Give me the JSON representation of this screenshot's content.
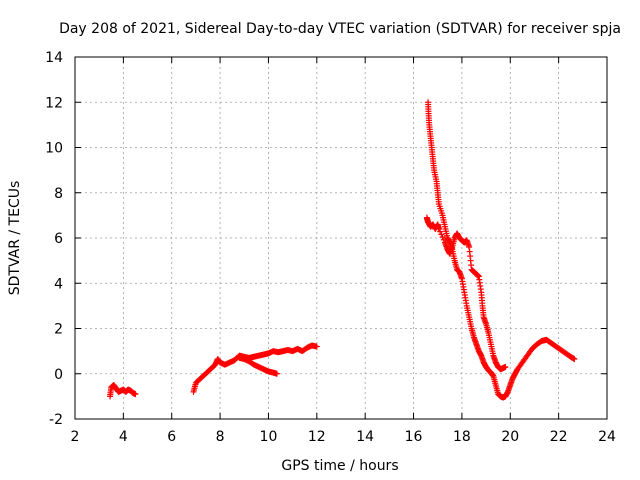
{
  "chart_data": {
    "type": "scatter",
    "title": "Day 208 of 2021, Sidereal Day-to-day VTEC variation (SDTVAR) for receiver spja",
    "xlabel": "GPS time / hours",
    "ylabel": "SDTVAR / TECUs",
    "xlim": [
      2,
      24
    ],
    "ylim": [
      -2,
      14
    ],
    "xticks": [
      "2",
      "4",
      "6",
      "8",
      "10",
      "12",
      "14",
      "16",
      "18",
      "20",
      "22",
      "24"
    ],
    "yticks": [
      "-2",
      "0",
      "2",
      "4",
      "6",
      "8",
      "10",
      "12",
      "14"
    ],
    "grid": true,
    "marker": "+",
    "color": "#ff0000",
    "series": [
      {
        "name": "SDTVAR",
        "segments": [
          [
            [
              3.45,
              -1.0
            ],
            [
              3.5,
              -0.6
            ],
            [
              3.6,
              -0.5
            ],
            [
              3.7,
              -0.65
            ],
            [
              3.8,
              -0.8
            ],
            [
              3.9,
              -0.75
            ],
            [
              4.0,
              -0.7
            ],
            [
              4.1,
              -0.8
            ],
            [
              4.2,
              -0.7
            ],
            [
              4.3,
              -0.75
            ],
            [
              4.4,
              -0.85
            ],
            [
              4.5,
              -0.9
            ]
          ],
          [
            [
              6.9,
              -0.8
            ],
            [
              7.0,
              -0.4
            ],
            [
              7.2,
              -0.2
            ],
            [
              7.4,
              0.0
            ],
            [
              7.6,
              0.2
            ],
            [
              7.8,
              0.4
            ],
            [
              7.9,
              0.65
            ],
            [
              8.0,
              0.5
            ],
            [
              8.2,
              0.4
            ],
            [
              8.4,
              0.5
            ],
            [
              8.6,
              0.6
            ],
            [
              8.8,
              0.8
            ],
            [
              9.0,
              0.75
            ],
            [
              9.2,
              0.7
            ],
            [
              9.4,
              0.75
            ],
            [
              9.6,
              0.8
            ],
            [
              9.8,
              0.85
            ],
            [
              10.0,
              0.9
            ],
            [
              10.2,
              1.0
            ],
            [
              10.4,
              0.95
            ],
            [
              10.6,
              1.0
            ],
            [
              10.8,
              1.05
            ],
            [
              11.0,
              1.0
            ],
            [
              11.2,
              1.1
            ],
            [
              11.4,
              1.0
            ],
            [
              11.6,
              1.15
            ],
            [
              11.8,
              1.25
            ],
            [
              12.0,
              1.2
            ]
          ],
          [
            [
              8.8,
              0.7
            ],
            [
              9.0,
              0.65
            ],
            [
              9.2,
              0.55
            ],
            [
              9.4,
              0.4
            ],
            [
              9.6,
              0.3
            ],
            [
              9.8,
              0.2
            ],
            [
              10.0,
              0.1
            ],
            [
              10.2,
              0.05
            ],
            [
              10.35,
              0.0
            ]
          ],
          [
            [
              16.6,
              12.0
            ],
            [
              16.62,
              11.5
            ],
            [
              16.65,
              11.0
            ],
            [
              16.7,
              10.5
            ],
            [
              16.75,
              10.0
            ],
            [
              16.8,
              9.5
            ],
            [
              16.85,
              9.0
            ],
            [
              16.95,
              8.5
            ],
            [
              17.0,
              8.0
            ],
            [
              17.05,
              7.5
            ],
            [
              17.2,
              7.0
            ],
            [
              17.3,
              6.5
            ],
            [
              17.4,
              6.0
            ],
            [
              17.5,
              5.8
            ],
            [
              17.6,
              5.5
            ],
            [
              17.7,
              5.0
            ],
            [
              17.8,
              4.6
            ],
            [
              17.9,
              4.5
            ],
            [
              18.0,
              4.2
            ],
            [
              18.1,
              3.6
            ],
            [
              18.2,
              3.0
            ],
            [
              18.3,
              2.5
            ],
            [
              18.4,
              2.0
            ],
            [
              18.5,
              1.6
            ],
            [
              18.6,
              1.3
            ],
            [
              18.7,
              1.0
            ],
            [
              18.8,
              0.8
            ],
            [
              18.9,
              0.5
            ],
            [
              19.0,
              0.3
            ],
            [
              19.1,
              0.15
            ],
            [
              19.2,
              0.05
            ],
            [
              19.3,
              -0.1
            ],
            [
              19.4,
              -0.5
            ],
            [
              19.5,
              -0.9
            ],
            [
              19.6,
              -1.0
            ],
            [
              19.7,
              -1.05
            ],
            [
              19.8,
              -1.0
            ],
            [
              19.9,
              -0.8
            ],
            [
              20.0,
              -0.5
            ],
            [
              20.1,
              -0.2
            ],
            [
              20.2,
              0.0
            ],
            [
              20.3,
              0.2
            ],
            [
              20.5,
              0.5
            ],
            [
              20.7,
              0.8
            ],
            [
              20.9,
              1.1
            ],
            [
              21.1,
              1.3
            ],
            [
              21.3,
              1.45
            ],
            [
              21.5,
              1.5
            ],
            [
              21.7,
              1.35
            ],
            [
              21.9,
              1.2
            ],
            [
              22.1,
              1.05
            ],
            [
              22.3,
              0.9
            ],
            [
              22.5,
              0.75
            ],
            [
              22.65,
              0.65
            ]
          ],
          [
            [
              16.55,
              6.9
            ],
            [
              16.6,
              6.7
            ],
            [
              16.7,
              6.5
            ],
            [
              16.8,
              6.6
            ],
            [
              16.9,
              6.4
            ],
            [
              17.0,
              6.6
            ],
            [
              17.05,
              6.4
            ],
            [
              17.3,
              5.8
            ],
            [
              17.4,
              5.5
            ],
            [
              17.5,
              5.3
            ],
            [
              17.6,
              5.6
            ],
            [
              17.7,
              6.0
            ],
            [
              17.8,
              6.2
            ],
            [
              17.9,
              6.0
            ],
            [
              18.0,
              5.9
            ],
            [
              18.1,
              5.8
            ],
            [
              18.2,
              5.9
            ],
            [
              18.3,
              5.6
            ],
            [
              18.4,
              4.6
            ],
            [
              18.5,
              4.5
            ],
            [
              18.6,
              4.4
            ],
            [
              18.7,
              4.3
            ],
            [
              18.8,
              3.6
            ],
            [
              18.85,
              3.0
            ],
            [
              18.9,
              2.5
            ],
            [
              19.0,
              2.2
            ],
            [
              19.1,
              1.8
            ],
            [
              19.2,
              1.3
            ],
            [
              19.3,
              0.8
            ],
            [
              19.4,
              0.5
            ],
            [
              19.5,
              0.3
            ],
            [
              19.6,
              0.2
            ],
            [
              19.7,
              0.25
            ],
            [
              19.8,
              0.3
            ]
          ]
        ]
      }
    ]
  }
}
